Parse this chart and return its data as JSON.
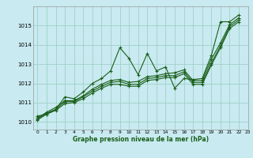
{
  "xlabel": "Graphe pression niveau de la mer (hPa)",
  "ylabel": "",
  "bg_color": "#c8eaf0",
  "grid_color": "#a0d0c8",
  "line_color": "#1a5e1a",
  "xlim": [
    -0.5,
    23
  ],
  "ylim": [
    1009.6,
    1016.0
  ],
  "yticks": [
    1010,
    1011,
    1012,
    1013,
    1014,
    1015
  ],
  "xticks": [
    0,
    1,
    2,
    3,
    4,
    5,
    6,
    7,
    8,
    9,
    10,
    11,
    12,
    13,
    14,
    15,
    16,
    17,
    18,
    19,
    20,
    21,
    22,
    23
  ],
  "lines": [
    {
      "x": [
        0,
        1,
        2,
        3,
        4,
        5,
        6,
        7,
        8,
        9,
        10,
        11,
        12,
        13,
        14,
        15,
        16,
        17,
        18,
        19,
        20,
        21,
        22
      ],
      "y": [
        1010.3,
        1010.4,
        1010.65,
        1011.3,
        1011.2,
        1011.55,
        1012.0,
        1012.25,
        1012.65,
        1013.85,
        1013.3,
        1012.45,
        1013.55,
        1012.65,
        1012.85,
        1011.75,
        1012.25,
        1012.2,
        1012.25,
        1013.45,
        1015.2,
        1015.2,
        1015.55
      ]
    },
    {
      "x": [
        0,
        1,
        2,
        3,
        4,
        5,
        6,
        7,
        8,
        9,
        10,
        11,
        12,
        13,
        14,
        15,
        16,
        17,
        18,
        19,
        20,
        21,
        22
      ],
      "y": [
        1010.2,
        1010.5,
        1010.75,
        1011.1,
        1011.1,
        1011.35,
        1011.7,
        1011.95,
        1012.15,
        1012.2,
        1012.05,
        1012.1,
        1012.35,
        1012.4,
        1012.5,
        1012.55,
        1012.7,
        1012.15,
        1012.15,
        1013.25,
        1014.1,
        1015.05,
        1015.4
      ]
    },
    {
      "x": [
        0,
        1,
        2,
        3,
        4,
        5,
        6,
        7,
        8,
        9,
        10,
        11,
        12,
        13,
        14,
        15,
        16,
        17,
        18,
        19,
        20,
        21,
        22
      ],
      "y": [
        1010.15,
        1010.45,
        1010.65,
        1011.05,
        1011.05,
        1011.3,
        1011.6,
        1011.85,
        1012.05,
        1012.1,
        1011.95,
        1011.95,
        1012.25,
        1012.3,
        1012.4,
        1012.4,
        1012.6,
        1012.05,
        1012.05,
        1013.05,
        1013.95,
        1014.95,
        1015.3
      ]
    },
    {
      "x": [
        0,
        1,
        2,
        3,
        4,
        5,
        6,
        7,
        8,
        9,
        10,
        11,
        12,
        13,
        14,
        15,
        16,
        17,
        18,
        19,
        20,
        21,
        22
      ],
      "y": [
        1010.1,
        1010.4,
        1010.6,
        1010.95,
        1011.0,
        1011.2,
        1011.5,
        1011.75,
        1011.95,
        1011.95,
        1011.85,
        1011.85,
        1012.15,
        1012.2,
        1012.3,
        1012.3,
        1012.5,
        1011.95,
        1011.95,
        1012.95,
        1013.85,
        1014.85,
        1015.2
      ]
    }
  ]
}
